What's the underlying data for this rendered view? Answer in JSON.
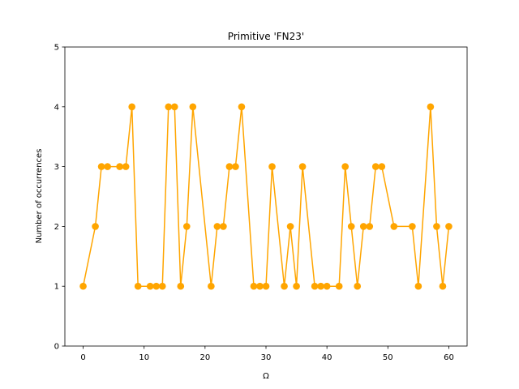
{
  "chart_data": {
    "type": "line",
    "title": "Primitive 'FN23'",
    "xlabel": "Ω",
    "ylabel": "Number of occurrences",
    "xlim": [
      -3,
      63
    ],
    "ylim": [
      0,
      5
    ],
    "xticks": [
      0,
      10,
      20,
      30,
      40,
      50,
      60
    ],
    "yticks": [
      0,
      1,
      2,
      3,
      4,
      5
    ],
    "grid": false,
    "color": "#ffa500",
    "marker": "circle",
    "series": [
      {
        "x": [
          0,
          2,
          3,
          4,
          6,
          7,
          8,
          9,
          11,
          12,
          13,
          14,
          15,
          16,
          17,
          18,
          21,
          22,
          23,
          24,
          25,
          26,
          28,
          29,
          30,
          31,
          33,
          34,
          35,
          36,
          38,
          39,
          40,
          42,
          43,
          44,
          45,
          46,
          47,
          48,
          49,
          51,
          54,
          55,
          57,
          58,
          59,
          60
        ],
        "y": [
          1,
          2,
          3,
          3,
          3,
          3,
          4,
          1,
          1,
          1,
          1,
          4,
          4,
          1,
          2,
          4,
          1,
          2,
          2,
          3,
          3,
          4,
          1,
          1,
          1,
          3,
          1,
          2,
          1,
          3,
          1,
          1,
          1,
          1,
          3,
          2,
          1,
          2,
          2,
          3,
          3,
          2,
          2,
          1,
          4,
          2,
          1,
          2
        ]
      }
    ]
  }
}
